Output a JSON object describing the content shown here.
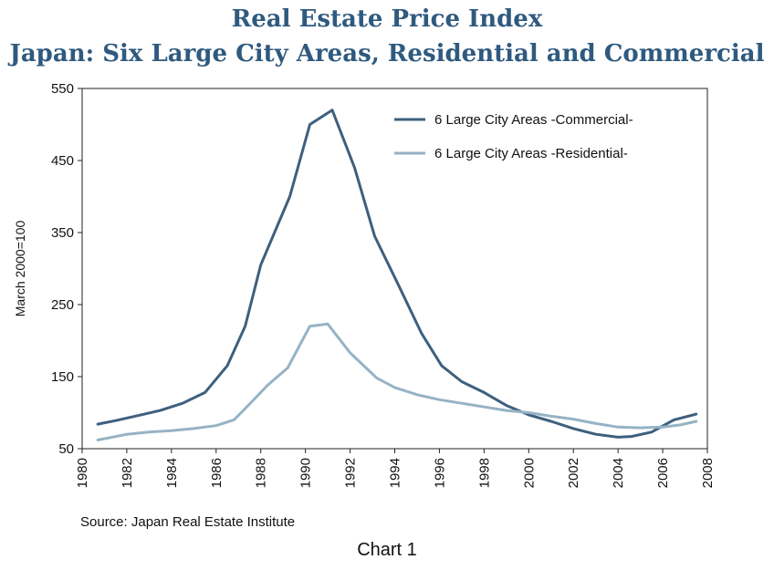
{
  "header": {
    "title": "Real Estate Price Index",
    "subtitle": "Japan: Six Large City Areas, Residential and Commercial"
  },
  "footer": {
    "source": "Source: Japan Real Estate Institute",
    "caption": "Chart 1"
  },
  "chart_data": {
    "type": "line",
    "title": "Real Estate Price Index",
    "subtitle": "Japan: Six Large City Areas, Residential and Commercial",
    "xlabel": "",
    "ylabel": "March 2000=100",
    "xlim": [
      1980,
      2008
    ],
    "ylim": [
      50,
      550
    ],
    "xticks": [
      1980,
      1982,
      1984,
      1986,
      1988,
      1990,
      1992,
      1994,
      1996,
      1998,
      2000,
      2002,
      2004,
      2006,
      2008
    ],
    "yticks": [
      50,
      150,
      250,
      350,
      450,
      550
    ],
    "legend_position": "top-right",
    "grid": false,
    "series": [
      {
        "name": "6 Large City Areas -Commercial-",
        "color": "#3d607e",
        "points": [
          [
            1980.7,
            84
          ],
          [
            1981.5,
            89
          ],
          [
            1982.5,
            96
          ],
          [
            1983.5,
            103
          ],
          [
            1984.5,
            113
          ],
          [
            1985.5,
            128
          ],
          [
            1986.5,
            165
          ],
          [
            1987.3,
            220
          ],
          [
            1988,
            305
          ],
          [
            1989.3,
            400
          ],
          [
            1990.2,
            500
          ],
          [
            1991.2,
            520
          ],
          [
            1992.2,
            440
          ],
          [
            1993.1,
            345
          ],
          [
            1994.2,
            275
          ],
          [
            1995.2,
            210
          ],
          [
            1996.1,
            165
          ],
          [
            1997,
            143
          ],
          [
            1998,
            128
          ],
          [
            1999,
            110
          ],
          [
            2000,
            97
          ],
          [
            2001,
            88
          ],
          [
            2002,
            78
          ],
          [
            2003,
            70
          ],
          [
            2004,
            66
          ],
          [
            2004.6,
            67
          ],
          [
            2005.5,
            73
          ],
          [
            2006.5,
            90
          ],
          [
            2007.5,
            98
          ]
        ]
      },
      {
        "name": "6 Large City Areas -Residential-",
        "color": "#96b3c5",
        "points": [
          [
            1980.7,
            62
          ],
          [
            1982,
            70
          ],
          [
            1983,
            73
          ],
          [
            1984,
            75
          ],
          [
            1985,
            78
          ],
          [
            1986,
            82
          ],
          [
            1986.8,
            90
          ],
          [
            1987.5,
            112
          ],
          [
            1988.3,
            138
          ],
          [
            1989.2,
            162
          ],
          [
            1990.2,
            220
          ],
          [
            1991,
            223
          ],
          [
            1992,
            183
          ],
          [
            1993.2,
            148
          ],
          [
            1994,
            135
          ],
          [
            1995,
            125
          ],
          [
            1996,
            118
          ],
          [
            1997,
            113
          ],
          [
            1998,
            108
          ],
          [
            1999,
            103
          ],
          [
            2000,
            100
          ],
          [
            2001,
            95
          ],
          [
            2002,
            91
          ],
          [
            2003,
            85
          ],
          [
            2004,
            80
          ],
          [
            2005,
            79
          ],
          [
            2006,
            80
          ],
          [
            2006.8,
            83
          ],
          [
            2007.5,
            88
          ]
        ]
      }
    ]
  }
}
